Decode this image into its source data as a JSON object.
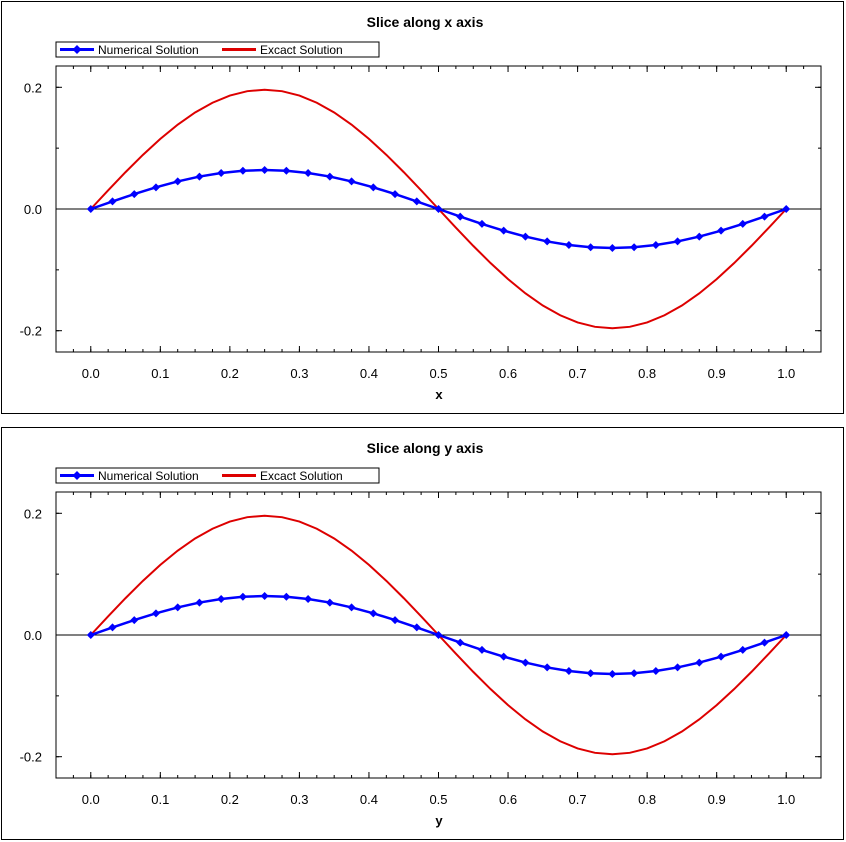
{
  "chart_data": [
    {
      "type": "line",
      "title": "Slice along x axis",
      "xlabel": "x",
      "ylabel": "",
      "xlim": [
        -0.05,
        1.05
      ],
      "ylim": [
        -0.235,
        0.235
      ],
      "xticks": [
        "0.0",
        "0.1",
        "0.2",
        "0.3",
        "0.4",
        "0.5",
        "0.6",
        "0.7",
        "0.8",
        "0.9",
        "1.0"
      ],
      "yticks": [
        "0.2",
        "0.0",
        "-0.2"
      ],
      "legend": "top-left",
      "grid": false,
      "series": [
        {
          "name": "Numerical Solution",
          "color": "#0000ff",
          "marker": "diamond",
          "x": [
            0,
            0.03125,
            0.0625,
            0.09375,
            0.125,
            0.15625,
            0.1875,
            0.21875,
            0.25,
            0.28125,
            0.3125,
            0.34375,
            0.375,
            0.40625,
            0.4375,
            0.46875,
            0.5,
            0.53125,
            0.5625,
            0.59375,
            0.625,
            0.65625,
            0.6875,
            0.71875,
            0.75,
            0.78125,
            0.8125,
            0.84375,
            0.875,
            0.90625,
            0.9375,
            0.96875,
            1.0
          ],
          "y": [
            0,
            0.0125,
            0.0245,
            0.0356,
            0.0453,
            0.0533,
            0.0591,
            0.0628,
            0.064,
            0.0628,
            0.0591,
            0.0533,
            0.0453,
            0.0356,
            0.0245,
            0.0125,
            0,
            -0.0125,
            -0.0245,
            -0.0356,
            -0.0453,
            -0.0533,
            -0.0591,
            -0.0628,
            -0.064,
            -0.0628,
            -0.0591,
            -0.0533,
            -0.0453,
            -0.0356,
            -0.0245,
            -0.0125,
            0
          ]
        },
        {
          "name": "Excact Solution",
          "color": "#dd0000",
          "marker": "none",
          "x": [
            0,
            0.025,
            0.05,
            0.075,
            0.1,
            0.125,
            0.15,
            0.175,
            0.2,
            0.225,
            0.25,
            0.275,
            0.3,
            0.325,
            0.35,
            0.375,
            0.4,
            0.425,
            0.45,
            0.475,
            0.5,
            0.525,
            0.55,
            0.575,
            0.6,
            0.625,
            0.65,
            0.675,
            0.7,
            0.725,
            0.75,
            0.775,
            0.8,
            0.825,
            0.85,
            0.875,
            0.9,
            0.925,
            0.95,
            0.975,
            1.0
          ],
          "y": [
            0,
            0.0307,
            0.0606,
            0.089,
            0.1152,
            0.1386,
            0.1586,
            0.1746,
            0.1864,
            0.1936,
            0.196,
            0.1936,
            0.1864,
            0.1746,
            0.1586,
            0.1386,
            0.1152,
            0.089,
            0.0606,
            0.0307,
            0,
            -0.0307,
            -0.0606,
            -0.089,
            -0.1152,
            -0.1386,
            -0.1586,
            -0.1746,
            -0.1864,
            -0.1936,
            -0.196,
            -0.1936,
            -0.1864,
            -0.1746,
            -0.1586,
            -0.1386,
            -0.1152,
            -0.089,
            -0.0606,
            -0.0307,
            0
          ]
        }
      ]
    },
    {
      "type": "line",
      "title": "Slice along y axis",
      "xlabel": "y",
      "ylabel": "",
      "xlim": [
        -0.05,
        1.05
      ],
      "ylim": [
        -0.235,
        0.235
      ],
      "xticks": [
        "0.0",
        "0.1",
        "0.2",
        "0.3",
        "0.4",
        "0.5",
        "0.6",
        "0.7",
        "0.8",
        "0.9",
        "1.0"
      ],
      "yticks": [
        "0.2",
        "0.0",
        "-0.2"
      ],
      "legend": "top-left",
      "grid": false,
      "series": [
        {
          "name": "Numerical Solution",
          "color": "#0000ff",
          "marker": "diamond",
          "x": [
            0,
            0.03125,
            0.0625,
            0.09375,
            0.125,
            0.15625,
            0.1875,
            0.21875,
            0.25,
            0.28125,
            0.3125,
            0.34375,
            0.375,
            0.40625,
            0.4375,
            0.46875,
            0.5,
            0.53125,
            0.5625,
            0.59375,
            0.625,
            0.65625,
            0.6875,
            0.71875,
            0.75,
            0.78125,
            0.8125,
            0.84375,
            0.875,
            0.90625,
            0.9375,
            0.96875,
            1.0
          ],
          "y": [
            0,
            0.0125,
            0.0245,
            0.0356,
            0.0453,
            0.0533,
            0.0591,
            0.0628,
            0.064,
            0.0628,
            0.0591,
            0.0533,
            0.0453,
            0.0356,
            0.0245,
            0.0125,
            0,
            -0.0125,
            -0.0245,
            -0.0356,
            -0.0453,
            -0.0533,
            -0.0591,
            -0.0628,
            -0.064,
            -0.0628,
            -0.0591,
            -0.0533,
            -0.0453,
            -0.0356,
            -0.0245,
            -0.0125,
            0
          ]
        },
        {
          "name": "Excact Solution",
          "color": "#dd0000",
          "marker": "none",
          "x": [
            0,
            0.025,
            0.05,
            0.075,
            0.1,
            0.125,
            0.15,
            0.175,
            0.2,
            0.225,
            0.25,
            0.275,
            0.3,
            0.325,
            0.35,
            0.375,
            0.4,
            0.425,
            0.45,
            0.475,
            0.5,
            0.525,
            0.55,
            0.575,
            0.6,
            0.625,
            0.65,
            0.675,
            0.7,
            0.725,
            0.75,
            0.775,
            0.8,
            0.825,
            0.85,
            0.875,
            0.9,
            0.925,
            0.95,
            0.975,
            1.0
          ],
          "y": [
            0,
            0.0307,
            0.0606,
            0.089,
            0.1152,
            0.1386,
            0.1586,
            0.1746,
            0.1864,
            0.1936,
            0.196,
            0.1936,
            0.1864,
            0.1746,
            0.1586,
            0.1386,
            0.1152,
            0.089,
            0.0606,
            0.0307,
            0,
            -0.0307,
            -0.0606,
            -0.089,
            -0.1152,
            -0.1386,
            -0.1586,
            -0.1746,
            -0.1864,
            -0.1936,
            -0.196,
            -0.1936,
            -0.1864,
            -0.1746,
            -0.1586,
            -0.1386,
            -0.1152,
            -0.089,
            -0.0606,
            -0.0307,
            0
          ]
        }
      ]
    }
  ]
}
